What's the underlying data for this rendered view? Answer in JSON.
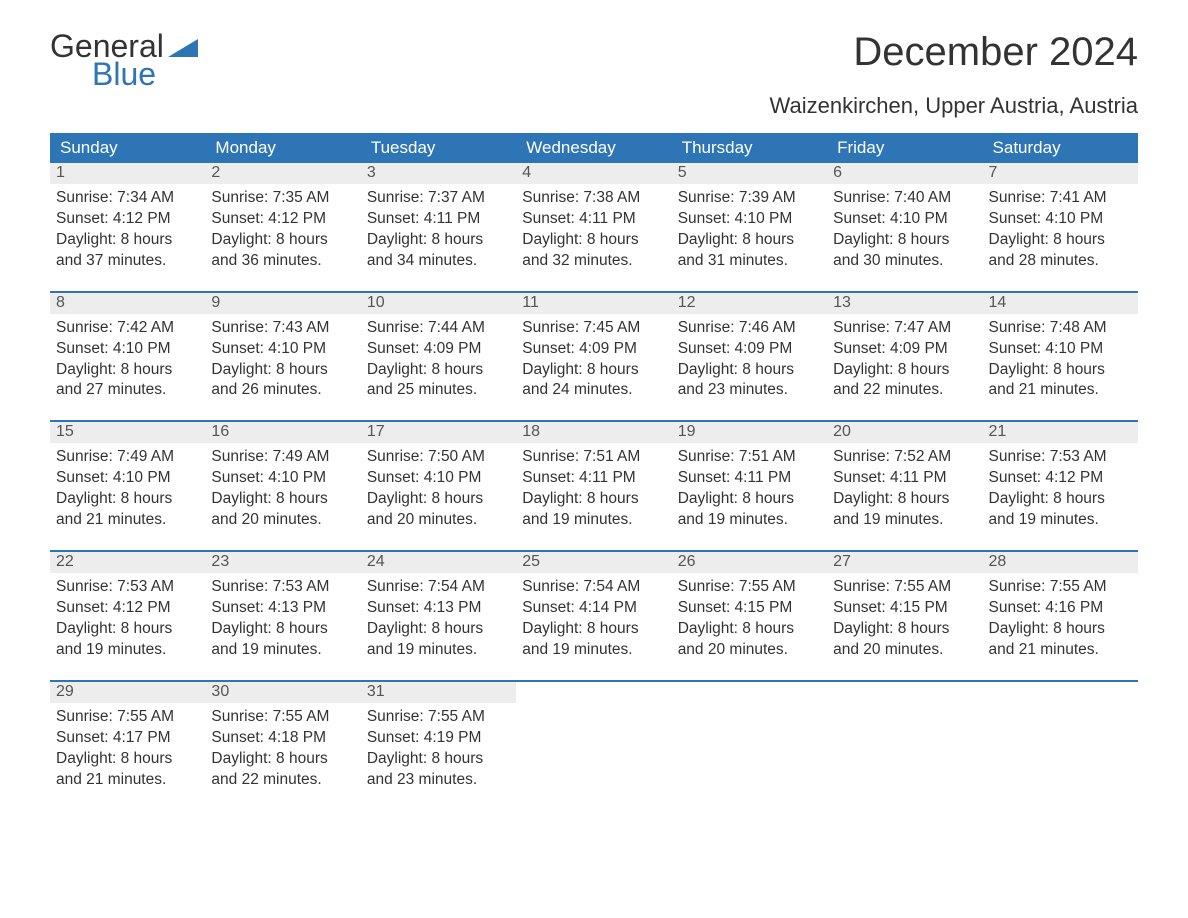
{
  "logo": {
    "general": "General",
    "blue": "Blue",
    "accent_color": "#2e75b6"
  },
  "title": "December 2024",
  "location": "Waizenkirchen, Upper Austria, Austria",
  "colors": {
    "header_bg": "#2e75b6",
    "header_text": "#ffffff",
    "daynum_bg": "#ededed",
    "text": "#333333",
    "row_border": "#2e75b6"
  },
  "day_labels": [
    "Sunday",
    "Monday",
    "Tuesday",
    "Wednesday",
    "Thursday",
    "Friday",
    "Saturday"
  ],
  "weeks": [
    [
      {
        "n": "1",
        "sunrise": "Sunrise: 7:34 AM",
        "sunset": "Sunset: 4:12 PM",
        "d1": "Daylight: 8 hours",
        "d2": "and 37 minutes."
      },
      {
        "n": "2",
        "sunrise": "Sunrise: 7:35 AM",
        "sunset": "Sunset: 4:12 PM",
        "d1": "Daylight: 8 hours",
        "d2": "and 36 minutes."
      },
      {
        "n": "3",
        "sunrise": "Sunrise: 7:37 AM",
        "sunset": "Sunset: 4:11 PM",
        "d1": "Daylight: 8 hours",
        "d2": "and 34 minutes."
      },
      {
        "n": "4",
        "sunrise": "Sunrise: 7:38 AM",
        "sunset": "Sunset: 4:11 PM",
        "d1": "Daylight: 8 hours",
        "d2": "and 32 minutes."
      },
      {
        "n": "5",
        "sunrise": "Sunrise: 7:39 AM",
        "sunset": "Sunset: 4:10 PM",
        "d1": "Daylight: 8 hours",
        "d2": "and 31 minutes."
      },
      {
        "n": "6",
        "sunrise": "Sunrise: 7:40 AM",
        "sunset": "Sunset: 4:10 PM",
        "d1": "Daylight: 8 hours",
        "d2": "and 30 minutes."
      },
      {
        "n": "7",
        "sunrise": "Sunrise: 7:41 AM",
        "sunset": "Sunset: 4:10 PM",
        "d1": "Daylight: 8 hours",
        "d2": "and 28 minutes."
      }
    ],
    [
      {
        "n": "8",
        "sunrise": "Sunrise: 7:42 AM",
        "sunset": "Sunset: 4:10 PM",
        "d1": "Daylight: 8 hours",
        "d2": "and 27 minutes."
      },
      {
        "n": "9",
        "sunrise": "Sunrise: 7:43 AM",
        "sunset": "Sunset: 4:10 PM",
        "d1": "Daylight: 8 hours",
        "d2": "and 26 minutes."
      },
      {
        "n": "10",
        "sunrise": "Sunrise: 7:44 AM",
        "sunset": "Sunset: 4:09 PM",
        "d1": "Daylight: 8 hours",
        "d2": "and 25 minutes."
      },
      {
        "n": "11",
        "sunrise": "Sunrise: 7:45 AM",
        "sunset": "Sunset: 4:09 PM",
        "d1": "Daylight: 8 hours",
        "d2": "and 24 minutes."
      },
      {
        "n": "12",
        "sunrise": "Sunrise: 7:46 AM",
        "sunset": "Sunset: 4:09 PM",
        "d1": "Daylight: 8 hours",
        "d2": "and 23 minutes."
      },
      {
        "n": "13",
        "sunrise": "Sunrise: 7:47 AM",
        "sunset": "Sunset: 4:09 PM",
        "d1": "Daylight: 8 hours",
        "d2": "and 22 minutes."
      },
      {
        "n": "14",
        "sunrise": "Sunrise: 7:48 AM",
        "sunset": "Sunset: 4:10 PM",
        "d1": "Daylight: 8 hours",
        "d2": "and 21 minutes."
      }
    ],
    [
      {
        "n": "15",
        "sunrise": "Sunrise: 7:49 AM",
        "sunset": "Sunset: 4:10 PM",
        "d1": "Daylight: 8 hours",
        "d2": "and 21 minutes."
      },
      {
        "n": "16",
        "sunrise": "Sunrise: 7:49 AM",
        "sunset": "Sunset: 4:10 PM",
        "d1": "Daylight: 8 hours",
        "d2": "and 20 minutes."
      },
      {
        "n": "17",
        "sunrise": "Sunrise: 7:50 AM",
        "sunset": "Sunset: 4:10 PM",
        "d1": "Daylight: 8 hours",
        "d2": "and 20 minutes."
      },
      {
        "n": "18",
        "sunrise": "Sunrise: 7:51 AM",
        "sunset": "Sunset: 4:11 PM",
        "d1": "Daylight: 8 hours",
        "d2": "and 19 minutes."
      },
      {
        "n": "19",
        "sunrise": "Sunrise: 7:51 AM",
        "sunset": "Sunset: 4:11 PM",
        "d1": "Daylight: 8 hours",
        "d2": "and 19 minutes."
      },
      {
        "n": "20",
        "sunrise": "Sunrise: 7:52 AM",
        "sunset": "Sunset: 4:11 PM",
        "d1": "Daylight: 8 hours",
        "d2": "and 19 minutes."
      },
      {
        "n": "21",
        "sunrise": "Sunrise: 7:53 AM",
        "sunset": "Sunset: 4:12 PM",
        "d1": "Daylight: 8 hours",
        "d2": "and 19 minutes."
      }
    ],
    [
      {
        "n": "22",
        "sunrise": "Sunrise: 7:53 AM",
        "sunset": "Sunset: 4:12 PM",
        "d1": "Daylight: 8 hours",
        "d2": "and 19 minutes."
      },
      {
        "n": "23",
        "sunrise": "Sunrise: 7:53 AM",
        "sunset": "Sunset: 4:13 PM",
        "d1": "Daylight: 8 hours",
        "d2": "and 19 minutes."
      },
      {
        "n": "24",
        "sunrise": "Sunrise: 7:54 AM",
        "sunset": "Sunset: 4:13 PM",
        "d1": "Daylight: 8 hours",
        "d2": "and 19 minutes."
      },
      {
        "n": "25",
        "sunrise": "Sunrise: 7:54 AM",
        "sunset": "Sunset: 4:14 PM",
        "d1": "Daylight: 8 hours",
        "d2": "and 19 minutes."
      },
      {
        "n": "26",
        "sunrise": "Sunrise: 7:55 AM",
        "sunset": "Sunset: 4:15 PM",
        "d1": "Daylight: 8 hours",
        "d2": "and 20 minutes."
      },
      {
        "n": "27",
        "sunrise": "Sunrise: 7:55 AM",
        "sunset": "Sunset: 4:15 PM",
        "d1": "Daylight: 8 hours",
        "d2": "and 20 minutes."
      },
      {
        "n": "28",
        "sunrise": "Sunrise: 7:55 AM",
        "sunset": "Sunset: 4:16 PM",
        "d1": "Daylight: 8 hours",
        "d2": "and 21 minutes."
      }
    ],
    [
      {
        "n": "29",
        "sunrise": "Sunrise: 7:55 AM",
        "sunset": "Sunset: 4:17 PM",
        "d1": "Daylight: 8 hours",
        "d2": "and 21 minutes."
      },
      {
        "n": "30",
        "sunrise": "Sunrise: 7:55 AM",
        "sunset": "Sunset: 4:18 PM",
        "d1": "Daylight: 8 hours",
        "d2": "and 22 minutes."
      },
      {
        "n": "31",
        "sunrise": "Sunrise: 7:55 AM",
        "sunset": "Sunset: 4:19 PM",
        "d1": "Daylight: 8 hours",
        "d2": "and 23 minutes."
      },
      null,
      null,
      null,
      null
    ]
  ]
}
